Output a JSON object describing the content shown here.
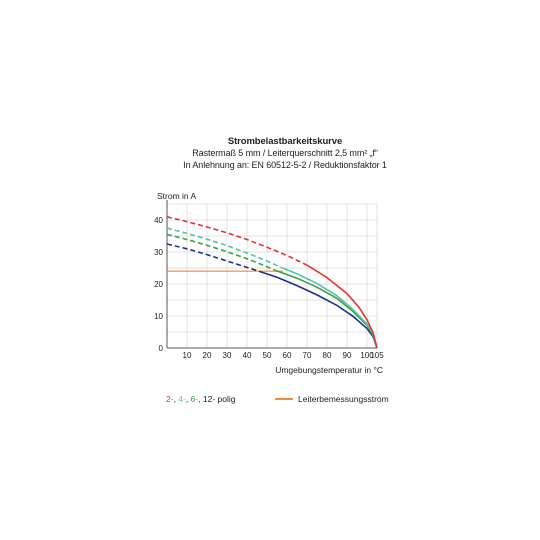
{
  "chart_data": {
    "type": "line",
    "title": "Strombelastbarkeitskurve",
    "subtitle_lines": [
      "Rastermaß 5 mm / Leiterquerschnitt 2,5 mm² „f“",
      "In Anlehnung an: EN 60512-5-2 / Reduktionsfaktor 1"
    ],
    "ylabel": "Strom in A",
    "xlabel": "Umgebungstemperatur in °C",
    "xlim": [
      0,
      105
    ],
    "ylim": [
      0,
      45
    ],
    "xticks": [
      10,
      20,
      30,
      40,
      50,
      60,
      70,
      80,
      90,
      100,
      105
    ],
    "yticks": [
      0,
      10,
      20,
      30,
      40
    ],
    "grid": true,
    "series": [
      {
        "name": "2-",
        "color": "#e8312b",
        "dashed": [
          [
            0,
            41
          ],
          [
            10,
            39.5
          ],
          [
            20,
            37.8
          ],
          [
            30,
            36
          ],
          [
            40,
            33.9
          ],
          [
            50,
            31.5
          ],
          [
            60,
            28.9
          ],
          [
            70,
            25.9
          ]
        ],
        "solid": [
          [
            70,
            25.9
          ],
          [
            80,
            22
          ],
          [
            90,
            17
          ],
          [
            96,
            12.7
          ],
          [
            100,
            8.8
          ],
          [
            103,
            4.8
          ],
          [
            105,
            0
          ]
        ]
      },
      {
        "name": "4-",
        "color": "#52c4a5",
        "dashed": [
          [
            0,
            37.5
          ],
          [
            10,
            35.8
          ],
          [
            20,
            34
          ],
          [
            30,
            32
          ],
          [
            40,
            29.7
          ],
          [
            50,
            27.2
          ],
          [
            57,
            25.2
          ]
        ],
        "solid": [
          [
            57,
            25.2
          ],
          [
            65,
            23.2
          ],
          [
            75,
            20.2
          ],
          [
            85,
            16.3
          ],
          [
            93,
            12
          ],
          [
            100,
            7.5
          ],
          [
            103,
            4.4
          ],
          [
            105,
            0
          ]
        ]
      },
      {
        "name": "6-",
        "color": "#3aa049",
        "dashed": [
          [
            0,
            35.5
          ],
          [
            10,
            33.9
          ],
          [
            20,
            32.1
          ],
          [
            30,
            30.1
          ],
          [
            40,
            27.9
          ],
          [
            50,
            25.4
          ],
          [
            54,
            24.3
          ]
        ],
        "solid": [
          [
            54,
            24.3
          ],
          [
            65,
            21.8
          ],
          [
            75,
            19
          ],
          [
            85,
            15.5
          ],
          [
            93,
            11.4
          ],
          [
            100,
            7.1
          ],
          [
            103,
            4.1
          ],
          [
            105,
            0
          ]
        ]
      },
      {
        "name": "12- polig",
        "color": "#1f2f8f",
        "dashed": [
          [
            0,
            32.5
          ],
          [
            10,
            31
          ],
          [
            20,
            29.2
          ],
          [
            30,
            27.2
          ],
          [
            40,
            25.2
          ],
          [
            46,
            24
          ]
        ],
        "solid": [
          [
            46,
            24
          ],
          [
            55,
            22.1
          ],
          [
            65,
            19.5
          ],
          [
            75,
            16.6
          ],
          [
            85,
            13.3
          ],
          [
            93,
            9.9
          ],
          [
            100,
            6.1
          ],
          [
            103,
            3.6
          ],
          [
            105,
            0
          ]
        ]
      },
      {
        "name": "Leiterbemessungsstrom",
        "color": "#f28c3c",
        "solid": [
          [
            0,
            24
          ],
          [
            58,
            24
          ]
        ]
      }
    ],
    "legend": {
      "left_parts": [
        {
          "text": "2-",
          "color": "#e8312b"
        },
        {
          "text": ", ",
          "color": "#222222"
        },
        {
          "text": "4-",
          "color": "#52c4a5"
        },
        {
          "text": ", ",
          "color": "#222222"
        },
        {
          "text": "6-",
          "color": "#3aa049"
        },
        {
          "text": ", 12- polig",
          "color": "#222222"
        }
      ],
      "right_label": "Leiterbemessungsstrom"
    }
  }
}
